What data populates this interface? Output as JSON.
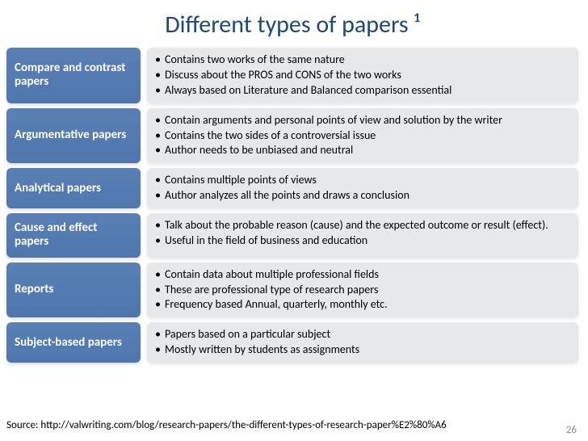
{
  "title": "Different types of papers ¹",
  "colors": {
    "title_color": "#1f497d",
    "label_bg": "#4f76ad",
    "content_bg": "#e7e8ea",
    "page_bg": "#ffffff"
  },
  "rows": [
    {
      "label": "Compare and contrast papers",
      "bullets": [
        "Contains two works of the same nature",
        "Discuss about the PROS and CONS of the two works",
        "Always based on Literature and Balanced comparison essential"
      ]
    },
    {
      "label": "Argumentative papers",
      "bullets": [
        "Contain arguments and personal points of view and solution by the writer",
        "Contains the two sides of a controversial issue",
        "Author needs to be unbiased and neutral"
      ]
    },
    {
      "label": "Analytical papers",
      "bullets": [
        "Contains multiple points of views",
        "Author analyzes all the points and draws a conclusion"
      ]
    },
    {
      "label": "Cause and effect papers",
      "bullets": [
        "Talk about the probable reason (cause) and the expected outcome or result (effect).",
        "Useful in the field of business and education"
      ]
    },
    {
      "label": "Reports",
      "bullets": [
        "Contain data about multiple professional fields",
        "These are professional type of research papers",
        "Frequency based Annual, quarterly, monthly etc."
      ]
    },
    {
      "label": "Subject-based papers",
      "bullets": [
        "Papers based on a particular subject",
        "Mostly written by students as assignments"
      ]
    }
  ],
  "source": "Source: http://valwriting.com/blog/research-papers/the-different-types-of-research-paper%E2%80%A6",
  "page_number": "26"
}
